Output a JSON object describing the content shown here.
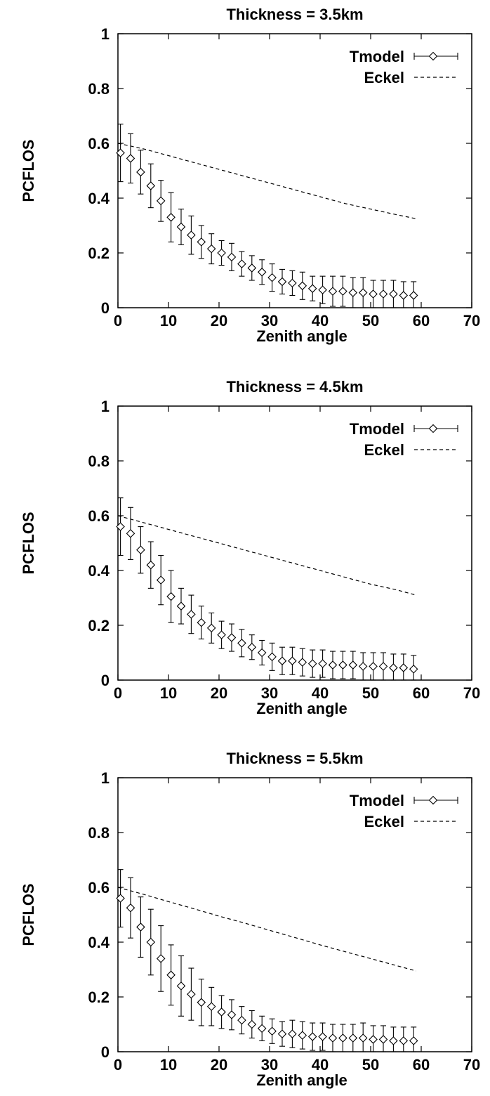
{
  "chart_data": [
    {
      "type": "scatter",
      "title": "Thickness = 3.5km",
      "xlabel": "Zenith angle",
      "ylabel": "PCFLOS",
      "xlim": [
        0,
        70
      ],
      "ylim": [
        0,
        1
      ],
      "xticks": [
        "0",
        "10",
        "20",
        "30",
        "40",
        "50",
        "60",
        "70"
      ],
      "yticks": [
        "0",
        "0.2",
        "0.4",
        "0.6",
        "0.8",
        "1"
      ],
      "legend": "top-right",
      "series": [
        {
          "name": "Tmodel",
          "style": "points-with-errorbars",
          "x": [
            0.5,
            2.5,
            4.5,
            6.5,
            8.5,
            10.5,
            12.5,
            14.5,
            16.5,
            18.5,
            20.5,
            22.5,
            24.5,
            26.5,
            28.5,
            30.5,
            32.5,
            34.5,
            36.5,
            38.5,
            40.5,
            42.5,
            44.5,
            46.5,
            48.5,
            50.5,
            52.5,
            54.5,
            56.5,
            58.5
          ],
          "y": [
            0.565,
            0.545,
            0.495,
            0.445,
            0.39,
            0.33,
            0.295,
            0.265,
            0.24,
            0.215,
            0.2,
            0.185,
            0.16,
            0.145,
            0.13,
            0.11,
            0.095,
            0.09,
            0.08,
            0.07,
            0.065,
            0.06,
            0.06,
            0.055,
            0.055,
            0.05,
            0.05,
            0.05,
            0.045,
            0.045
          ],
          "yerr": [
            0.105,
            0.09,
            0.08,
            0.08,
            0.075,
            0.09,
            0.065,
            0.07,
            0.06,
            0.055,
            0.045,
            0.05,
            0.045,
            0.045,
            0.045,
            0.05,
            0.045,
            0.045,
            0.05,
            0.045,
            0.05,
            0.055,
            0.055,
            0.055,
            0.055,
            0.05,
            0.05,
            0.05,
            0.05,
            0.05
          ]
        },
        {
          "name": "Eckel",
          "style": "dashed-line",
          "x": [
            0,
            5,
            10,
            15,
            20,
            25,
            30,
            35,
            40,
            45,
            50,
            55,
            59
          ],
          "y": [
            0.6,
            0.58,
            0.555,
            0.53,
            0.505,
            0.48,
            0.455,
            0.43,
            0.405,
            0.38,
            0.36,
            0.34,
            0.325
          ]
        }
      ]
    },
    {
      "type": "scatter",
      "title": "Thickness = 4.5km",
      "xlabel": "Zenith angle",
      "ylabel": "PCFLOS",
      "xlim": [
        0,
        70
      ],
      "ylim": [
        0,
        1
      ],
      "xticks": [
        "0",
        "10",
        "20",
        "30",
        "40",
        "50",
        "60",
        "70"
      ],
      "yticks": [
        "0",
        "0.2",
        "0.4",
        "0.6",
        "0.8",
        "1"
      ],
      "legend": "top-right",
      "series": [
        {
          "name": "Tmodel",
          "style": "points-with-errorbars",
          "x": [
            0.5,
            2.5,
            4.5,
            6.5,
            8.5,
            10.5,
            12.5,
            14.5,
            16.5,
            18.5,
            20.5,
            22.5,
            24.5,
            26.5,
            28.5,
            30.5,
            32.5,
            34.5,
            36.5,
            38.5,
            40.5,
            42.5,
            44.5,
            46.5,
            48.5,
            50.5,
            52.5,
            54.5,
            56.5,
            58.5
          ],
          "y": [
            0.56,
            0.535,
            0.475,
            0.42,
            0.365,
            0.305,
            0.27,
            0.24,
            0.21,
            0.19,
            0.165,
            0.155,
            0.135,
            0.12,
            0.1,
            0.085,
            0.07,
            0.07,
            0.065,
            0.06,
            0.06,
            0.055,
            0.055,
            0.055,
            0.05,
            0.05,
            0.05,
            0.045,
            0.045,
            0.04
          ],
          "yerr": [
            0.105,
            0.095,
            0.085,
            0.085,
            0.09,
            0.095,
            0.065,
            0.07,
            0.06,
            0.055,
            0.05,
            0.05,
            0.05,
            0.045,
            0.045,
            0.05,
            0.05,
            0.05,
            0.05,
            0.05,
            0.05,
            0.05,
            0.05,
            0.05,
            0.05,
            0.05,
            0.05,
            0.05,
            0.05,
            0.05
          ]
        },
        {
          "name": "Eckel",
          "style": "dashed-line",
          "x": [
            0,
            5,
            10,
            15,
            20,
            25,
            30,
            35,
            40,
            45,
            50,
            55,
            59
          ],
          "y": [
            0.6,
            0.575,
            0.55,
            0.525,
            0.5,
            0.475,
            0.45,
            0.425,
            0.4,
            0.375,
            0.35,
            0.33,
            0.31
          ]
        }
      ]
    },
    {
      "type": "scatter",
      "title": "Thickness = 5.5km",
      "xlabel": "Zenith angle",
      "ylabel": "PCFLOS",
      "xlim": [
        0,
        70
      ],
      "ylim": [
        0,
        1
      ],
      "xticks": [
        "0",
        "10",
        "20",
        "30",
        "40",
        "50",
        "60",
        "70"
      ],
      "yticks": [
        "0",
        "0.2",
        "0.4",
        "0.6",
        "0.8",
        "1"
      ],
      "legend": "top-right",
      "series": [
        {
          "name": "Tmodel",
          "style": "points-with-errorbars",
          "x": [
            0.5,
            2.5,
            4.5,
            6.5,
            8.5,
            10.5,
            12.5,
            14.5,
            16.5,
            18.5,
            20.5,
            22.5,
            24.5,
            26.5,
            28.5,
            30.5,
            32.5,
            34.5,
            36.5,
            38.5,
            40.5,
            42.5,
            44.5,
            46.5,
            48.5,
            50.5,
            52.5,
            54.5,
            56.5,
            58.5
          ],
          "y": [
            0.56,
            0.525,
            0.455,
            0.4,
            0.34,
            0.28,
            0.24,
            0.21,
            0.18,
            0.165,
            0.145,
            0.135,
            0.115,
            0.1,
            0.085,
            0.075,
            0.065,
            0.065,
            0.06,
            0.055,
            0.055,
            0.05,
            0.05,
            0.05,
            0.05,
            0.045,
            0.045,
            0.04,
            0.04,
            0.04
          ],
          "yerr": [
            0.105,
            0.11,
            0.11,
            0.12,
            0.12,
            0.11,
            0.11,
            0.095,
            0.085,
            0.07,
            0.06,
            0.055,
            0.05,
            0.05,
            0.045,
            0.045,
            0.045,
            0.05,
            0.05,
            0.05,
            0.05,
            0.05,
            0.05,
            0.05,
            0.055,
            0.05,
            0.05,
            0.05,
            0.05,
            0.05
          ]
        },
        {
          "name": "Eckel",
          "style": "dashed-line",
          "x": [
            0,
            5,
            10,
            15,
            20,
            25,
            30,
            35,
            40,
            45,
            50,
            55,
            59
          ],
          "y": [
            0.6,
            0.575,
            0.548,
            0.522,
            0.495,
            0.47,
            0.443,
            0.417,
            0.39,
            0.365,
            0.34,
            0.315,
            0.295
          ]
        }
      ]
    }
  ]
}
